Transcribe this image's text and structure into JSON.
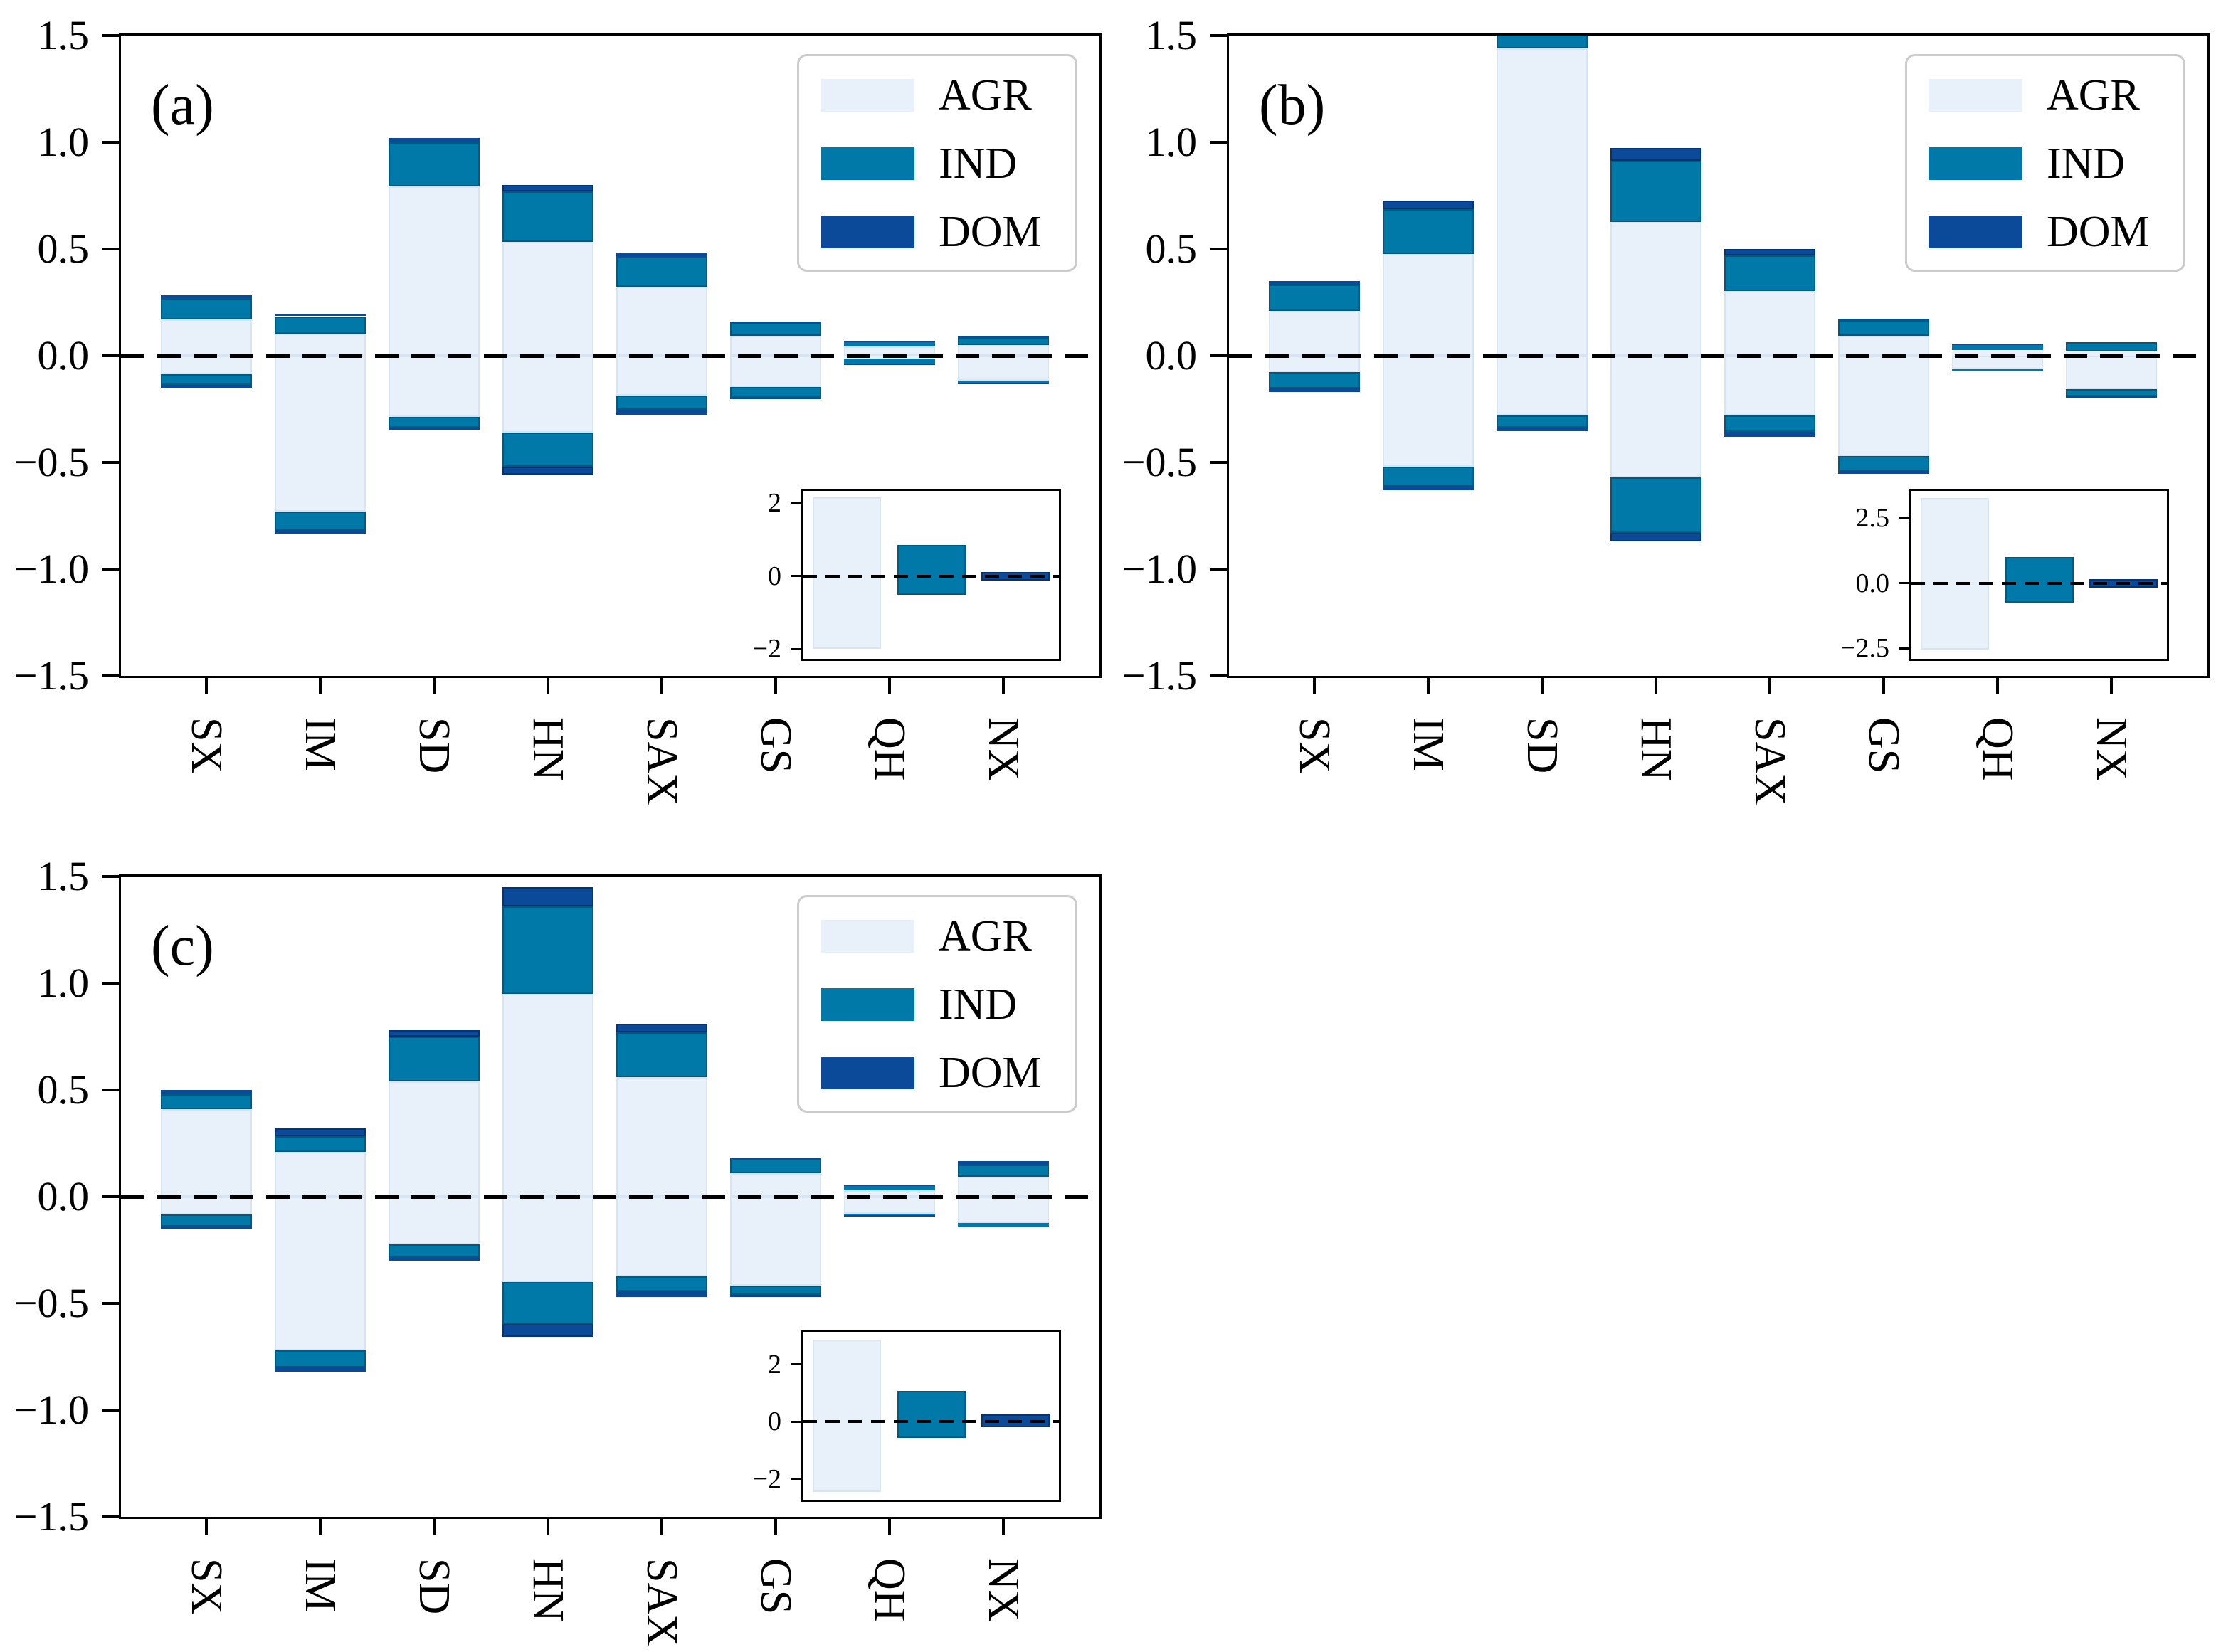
{
  "chart_data": {
    "type": "bar",
    "stacked": true,
    "orientation": "vertical",
    "series": [
      "AGR",
      "IND",
      "DOM"
    ],
    "categories": [
      "SX",
      "IM",
      "SD",
      "HN",
      "SAX",
      "GS",
      "QH",
      "NX"
    ],
    "ylim_main": [
      -1.5,
      1.5
    ],
    "yticks_main": [
      {
        "v": 1.5,
        "t": "1.5"
      },
      {
        "v": 1.0,
        "t": "1.0"
      },
      {
        "v": 0.5,
        "t": "0.5"
      },
      {
        "v": 0.0,
        "t": "0.0"
      },
      {
        "v": -0.5,
        "t": "−0.5"
      },
      {
        "v": -1.0,
        "t": "−1.0"
      },
      {
        "v": -1.5,
        "t": "−1.5"
      }
    ],
    "zero_reference_line": "dashed",
    "grid": false,
    "colors": {
      "AGR": "#e8f0f9",
      "IND": "#0079a8",
      "DOM": "#0a4a99",
      "AGR_edge": "#d7e4f4",
      "IND_edge": "#00597f",
      "DOM_edge": "#063472",
      "axis": "#000000"
    },
    "legend": {
      "position": "upper right",
      "entries": [
        {
          "label": "AGR",
          "color": "#e8f0f9"
        },
        {
          "label": "IND",
          "color": "#0079a8"
        },
        {
          "label": "DOM",
          "color": "#0a4a99"
        }
      ]
    },
    "panels": [
      {
        "id": "a",
        "label": "(a)",
        "bars": [
          {
            "cat": "SX",
            "pos": [
              0.17,
              0.1,
              0.012
            ],
            "neg": [
              0.088,
              0.05,
              0.012
            ]
          },
          {
            "cat": "IM",
            "pos": [
              0.105,
              0.08,
              0.012
            ],
            "neg": [
              0.73,
              0.088,
              0.017
            ]
          },
          {
            "cat": "SD",
            "pos": [
              0.795,
              0.205,
              0.02
            ],
            "neg": [
              0.287,
              0.05,
              0.01
            ]
          },
          {
            "cat": "HN",
            "pos": [
              0.535,
              0.235,
              0.03
            ],
            "neg": [
              0.36,
              0.16,
              0.035
            ]
          },
          {
            "cat": "SAX",
            "pos": [
              0.322,
              0.14,
              0.02
            ],
            "neg": [
              0.187,
              0.065,
              0.026
            ]
          },
          {
            "cat": "GS",
            "pos": [
              0.093,
              0.06,
              0.006
            ],
            "neg": [
              0.148,
              0.048,
              0.008
            ]
          },
          {
            "cat": "QH",
            "pos": [
              0.042,
              0.022,
              0.005
            ],
            "neg": [
              0.012,
              0.024,
              0.008
            ]
          },
          {
            "cat": "NX",
            "pos": [
              0.051,
              0.035,
              0.006
            ],
            "neg": [
              0.115,
              0.012,
              0.004
            ]
          }
        ],
        "inset": {
          "ylim": [
            -2.27,
            2.34
          ],
          "yticks": [
            {
              "v": 2,
              "t": "2"
            },
            {
              "v": 0,
              "t": "0"
            },
            {
              "v": -2,
              "t": "−2"
            }
          ],
          "pos": [
            2.17,
            0.85,
            0.11
          ],
          "neg": [
            2.0,
            0.52,
            0.12
          ]
        }
      },
      {
        "id": "b",
        "label": "(b)",
        "bars": [
          {
            "cat": "SX",
            "pos": [
              0.209,
              0.126,
              0.015
            ],
            "neg": [
              0.077,
              0.077,
              0.015
            ]
          },
          {
            "cat": "IM",
            "pos": [
              0.476,
              0.21,
              0.04
            ],
            "neg": [
              0.52,
              0.09,
              0.02
            ]
          },
          {
            "cat": "SD",
            "pos": [
              1.44,
              0.07,
              0.012
            ],
            "neg": [
              0.28,
              0.058,
              0.014
            ]
          },
          {
            "cat": "HN",
            "pos": [
              0.627,
              0.286,
              0.06
            ],
            "neg": [
              0.57,
              0.26,
              0.04
            ]
          },
          {
            "cat": "SAX",
            "pos": [
              0.303,
              0.167,
              0.03
            ],
            "neg": [
              0.28,
              0.078,
              0.022
            ]
          },
          {
            "cat": "GS",
            "pos": [
              0.092,
              0.075,
              0.006
            ],
            "neg": [
              0.469,
              0.072,
              0.011
            ]
          },
          {
            "cat": "QH",
            "pos": [
              0.026,
              0.025,
              0.004
            ],
            "neg": [
              0.063,
              0.006,
              0.002
            ]
          },
          {
            "cat": "NX",
            "pos": [
              0.02,
              0.039,
              0.006
            ],
            "neg": [
              0.158,
              0.033,
              0.004
            ]
          }
        ],
        "inset": {
          "ylim": [
            -2.9,
            3.55
          ],
          "yticks": [
            {
              "v": 2.5,
              "t": "2.5"
            },
            {
              "v": 0,
              "t": "0.0"
            },
            {
              "v": -2.5,
              "t": "−2.5"
            }
          ],
          "pos": [
            3.29,
            1.02,
            0.16
          ],
          "neg": [
            2.55,
            0.73,
            0.18
          ]
        }
      },
      {
        "id": "c",
        "label": "(c)",
        "bars": [
          {
            "cat": "SX",
            "pos": [
              0.41,
              0.07,
              0.02
            ],
            "neg": [
              0.084,
              0.057,
              0.013
            ]
          },
          {
            "cat": "IM",
            "pos": [
              0.21,
              0.075,
              0.035
            ],
            "neg": [
              0.72,
              0.08,
              0.02
            ]
          },
          {
            "cat": "SD",
            "pos": [
              0.54,
              0.21,
              0.03
            ],
            "neg": [
              0.222,
              0.064,
              0.014
            ]
          },
          {
            "cat": "HN",
            "pos": [
              0.95,
              0.41,
              0.09
            ],
            "neg": [
              0.4,
              0.195,
              0.06
            ]
          },
          {
            "cat": "SAX",
            "pos": [
              0.56,
              0.21,
              0.04
            ],
            "neg": [
              0.372,
              0.071,
              0.027
            ]
          },
          {
            "cat": "GS",
            "pos": [
              0.111,
              0.065,
              0.006
            ],
            "neg": [
              0.416,
              0.043,
              0.011
            ]
          },
          {
            "cat": "QH",
            "pos": [
              0.03,
              0.022,
              0.003
            ],
            "neg": [
              0.079,
              0.008,
              0.002
            ]
          },
          {
            "cat": "NX",
            "pos": [
              0.094,
              0.055,
              0.018
            ],
            "neg": [
              0.123,
              0.016,
              0.003
            ]
          }
        ],
        "inset": {
          "ylim": [
            -2.73,
            3.14
          ],
          "yticks": [
            {
              "v": 2,
              "t": "2"
            },
            {
              "v": 0,
              "t": "0"
            },
            {
              "v": -2,
              "t": "−2"
            }
          ],
          "pos": [
            2.87,
            1.07,
            0.25
          ],
          "neg": [
            2.46,
            0.57,
            0.2
          ]
        }
      }
    ]
  }
}
